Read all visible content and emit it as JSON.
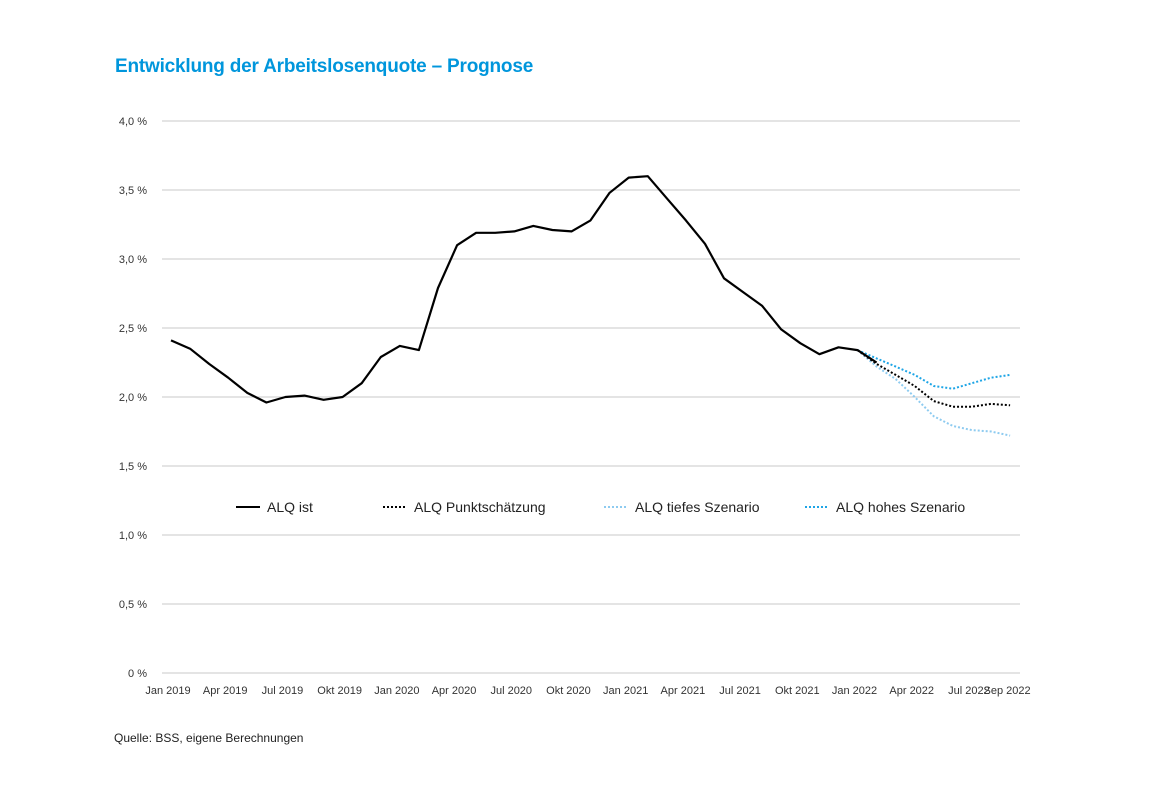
{
  "chart_data": {
    "type": "line",
    "title": "Entwicklung der Arbeitslosenquote – Prognose",
    "source": "Quelle: BSS, eigene Berechnungen",
    "xlabel": "",
    "ylabel": "",
    "ylim": [
      0,
      4.0
    ],
    "grid": true,
    "legend_position": "center",
    "y_ticks": [
      0,
      0.5,
      1.0,
      1.5,
      2.0,
      2.5,
      3.0,
      3.5,
      4.0
    ],
    "y_tick_labels": [
      "0 %",
      "0,5 %",
      "1,0 %",
      "1,5 %",
      "2,0 %",
      "2,5 %",
      "3,0 %",
      "3,5 %",
      "4,0 %"
    ],
    "x_tick_labels": [
      {
        "index": 0,
        "label": "Jan 2019"
      },
      {
        "index": 3,
        "label": "Apr 2019"
      },
      {
        "index": 6,
        "label": "Jul 2019"
      },
      {
        "index": 9,
        "label": "Okt 2019"
      },
      {
        "index": 12,
        "label": "Jan 2020"
      },
      {
        "index": 15,
        "label": "Apr 2020"
      },
      {
        "index": 18,
        "label": "Jul 2020"
      },
      {
        "index": 21,
        "label": "Okt 2020"
      },
      {
        "index": 24,
        "label": "Jan 2021"
      },
      {
        "index": 27,
        "label": "Apr 2021"
      },
      {
        "index": 30,
        "label": "Jul 2021"
      },
      {
        "index": 33,
        "label": "Okt 2021"
      },
      {
        "index": 36,
        "label": "Jan 2022"
      },
      {
        "index": 39,
        "label": "Apr 2022"
      },
      {
        "index": 42,
        "label": "Jul 2022"
      },
      {
        "index": 44,
        "label": "Sep 2022"
      }
    ],
    "x_count": 45,
    "series": [
      {
        "name": "ALQ ist",
        "color": "#000000",
        "style": "solid",
        "start_index": 0,
        "values": [
          2.41,
          2.35,
          2.24,
          2.14,
          2.03,
          1.96,
          2.0,
          2.01,
          1.98,
          2.0,
          2.1,
          2.29,
          2.37,
          2.34,
          2.79,
          3.1,
          3.19,
          3.19,
          3.2,
          3.24,
          3.21,
          3.2,
          3.28,
          3.48,
          3.59,
          3.6,
          3.44,
          3.28,
          3.11,
          2.86,
          2.76,
          2.66,
          2.49,
          2.39,
          2.31,
          2.36,
          2.34,
          2.25
        ]
      },
      {
        "name": "ALQ Punktschätzung",
        "color": "#000000",
        "style": "dotted",
        "start_index": 36,
        "values": [
          2.34,
          2.24,
          2.16,
          2.08,
          1.97,
          1.93,
          1.93,
          1.95,
          1.94
        ]
      },
      {
        "name": "ALQ tiefes Szenario",
        "color": "#8ecbf0",
        "style": "dotted",
        "start_index": 36,
        "values": [
          2.34,
          2.22,
          2.13,
          2.0,
          1.86,
          1.79,
          1.76,
          1.75,
          1.72
        ]
      },
      {
        "name": "ALQ hohes Szenario",
        "color": "#1ea5e6",
        "style": "dotted",
        "start_index": 36,
        "values": [
          2.34,
          2.28,
          2.22,
          2.16,
          2.08,
          2.06,
          2.1,
          2.14,
          2.16
        ]
      }
    ]
  }
}
